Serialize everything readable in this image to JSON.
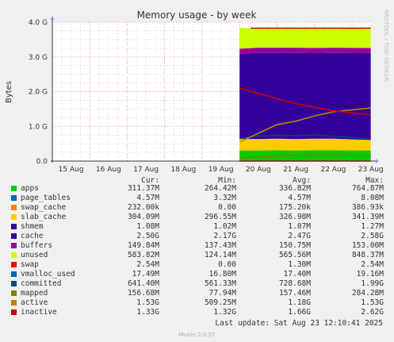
{
  "chart_data": {
    "type": "area",
    "title": "Memory usage - by week",
    "ylabel": "Bytes",
    "side_label": "RRDTOOL / TOBI OETIKER",
    "ylim": [
      0,
      4.0
    ],
    "yunit": "G",
    "y_ticks": [
      "0.0",
      "1.0 G",
      "2.0 G",
      "3.0 G",
      "4.0 G"
    ],
    "y_tick_values": [
      0,
      1,
      2,
      3,
      4
    ],
    "x_ticks": [
      "15 Aug",
      "16 Aug",
      "17 Aug",
      "18 Aug",
      "19 Aug",
      "20 Aug",
      "21 Aug",
      "22 Aug",
      "23 Aug"
    ],
    "x_range": [
      "2025-08-15",
      "2025-08-23 12:10"
    ],
    "data_start": "2025-08-20",
    "stacked_series": [
      {
        "name": "apps",
        "color": "#00cc00",
        "values": [
          0.3,
          0.3,
          0.31,
          0.3,
          0.31,
          0.31,
          0.3
        ]
      },
      {
        "name": "page_tables",
        "color": "#0066b3",
        "values": [
          0.005,
          0.005,
          0.005,
          0.005,
          0.005,
          0.005,
          0.005
        ]
      },
      {
        "name": "swap_cache",
        "color": "#ff8000",
        "values": [
          0.0002,
          0.0002,
          0.0002,
          0.0002,
          0.0002,
          0.0002,
          0.0002
        ]
      },
      {
        "name": "slab_cache",
        "color": "#ffcc00",
        "values": [
          0.33,
          0.33,
          0.33,
          0.33,
          0.33,
          0.33,
          0.3
        ]
      },
      {
        "name": "shmem",
        "color": "#330099",
        "values": [
          0.001,
          0.001,
          0.001,
          0.001,
          0.001,
          0.001,
          0.001
        ]
      },
      {
        "name": "cache",
        "color": "#330099",
        "values": [
          2.45,
          2.48,
          2.47,
          2.48,
          2.46,
          2.47,
          2.5
        ]
      },
      {
        "name": "buffers",
        "color": "#990099",
        "values": [
          0.15,
          0.15,
          0.15,
          0.15,
          0.15,
          0.15,
          0.15
        ]
      },
      {
        "name": "unused",
        "color": "#ccff00",
        "values": [
          0.6,
          0.56,
          0.57,
          0.56,
          0.58,
          0.57,
          0.58
        ]
      }
    ],
    "line_series": [
      {
        "name": "swap",
        "color": "#ff0000",
        "values": [
          0.0,
          0.0,
          0.0,
          0.0,
          0.0,
          0.0,
          0.0
        ]
      },
      {
        "name": "committed",
        "color": "#00487d",
        "values": [
          0.65,
          0.72,
          0.74,
          0.73,
          0.75,
          0.72,
          0.64
        ]
      },
      {
        "name": "mapped",
        "color": "#808000",
        "values": [
          0.08,
          0.12,
          0.15,
          0.16,
          0.17,
          0.17,
          0.16
        ]
      },
      {
        "name": "active",
        "color": "#b8860b",
        "values": [
          0.55,
          0.8,
          1.05,
          1.15,
          1.3,
          1.42,
          1.53
        ]
      },
      {
        "name": "inactive",
        "color": "#cc0000",
        "values": [
          2.1,
          1.95,
          1.8,
          1.65,
          1.55,
          1.45,
          1.33
        ]
      }
    ],
    "total_line": {
      "color": "#cc0000",
      "value": 3.83
    },
    "sample_x": [
      "2025-08-20 00:00",
      "2025-08-20 12:00",
      "2025-08-21 00:00",
      "2025-08-21 12:00",
      "2025-08-22 00:00",
      "2025-08-22 12:00",
      "2025-08-23 12:00"
    ]
  },
  "legend": {
    "headers": [
      "Cur:",
      "Min:",
      "Avg:",
      "Max:"
    ],
    "rows": [
      {
        "name": "apps",
        "color": "#00cc00",
        "cur": "311.37M",
        "min": "264.42M",
        "avg": "336.82M",
        "max": "764.87M"
      },
      {
        "name": "page_tables",
        "color": "#0066b3",
        "cur": "4.57M",
        "min": "3.32M",
        "avg": "4.57M",
        "max": "8.08M"
      },
      {
        "name": "swap_cache",
        "color": "#ff8000",
        "cur": "232.00k",
        "min": "0.00",
        "avg": "175.20k",
        "max": "386.93k"
      },
      {
        "name": "slab_cache",
        "color": "#ffcc00",
        "cur": "304.09M",
        "min": "296.55M",
        "avg": "326.98M",
        "max": "341.39M"
      },
      {
        "name": "shmem",
        "color": "#330099",
        "cur": "1.08M",
        "min": "1.02M",
        "avg": "1.07M",
        "max": "1.27M"
      },
      {
        "name": "cache",
        "color": "#330099",
        "cur": "2.50G",
        "min": "2.17G",
        "avg": "2.47G",
        "max": "2.58G"
      },
      {
        "name": "buffers",
        "color": "#990099",
        "cur": "149.84M",
        "min": "137.43M",
        "avg": "150.75M",
        "max": "153.00M"
      },
      {
        "name": "unused",
        "color": "#ccff00",
        "cur": "583.82M",
        "min": "124.14M",
        "avg": "565.56M",
        "max": "848.37M"
      },
      {
        "name": "swap",
        "color": "#ff0000",
        "cur": "2.54M",
        "min": "0.00",
        "avg": "1.30M",
        "max": "2.54M"
      },
      {
        "name": "vmalloc_used",
        "color": "#0066b3",
        "cur": "17.49M",
        "min": "16.80M",
        "avg": "17.40M",
        "max": "19.16M"
      },
      {
        "name": "committed",
        "color": "#00487d",
        "cur": "641.40M",
        "min": "561.33M",
        "avg": "728.68M",
        "max": "1.99G"
      },
      {
        "name": "mapped",
        "color": "#808000",
        "cur": "156.68M",
        "min": "77.94M",
        "avg": "157.46M",
        "max": "284.28M"
      },
      {
        "name": "active",
        "color": "#b8860b",
        "cur": "1.53G",
        "min": "509.25M",
        "avg": "1.18G",
        "max": "1.53G"
      },
      {
        "name": "inactive",
        "color": "#cc0000",
        "cur": "1.33G",
        "min": "1.32G",
        "avg": "1.66G",
        "max": "2.62G"
      }
    ]
  },
  "last_update": "Last update: Sat Aug 23 12:10:41 2025",
  "version": "Munin 2.0.57"
}
